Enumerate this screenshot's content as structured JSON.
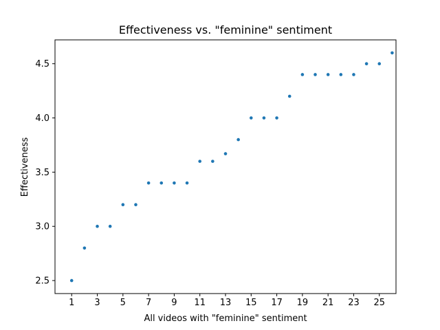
{
  "chart_data": {
    "type": "scatter",
    "title": "Effectiveness vs. \"feminine\" sentiment",
    "xlabel": "All videos with \"feminine\" sentiment",
    "ylabel": "Effectiveness",
    "xlim": [
      -0.3,
      26.3
    ],
    "ylim": [
      2.38,
      4.72
    ],
    "xticks": [
      1,
      3,
      5,
      7,
      9,
      11,
      13,
      15,
      17,
      19,
      21,
      23,
      25
    ],
    "yticks": [
      2.5,
      3.0,
      3.5,
      4.0,
      4.5
    ],
    "ytick_labels": [
      "2.5",
      "3.0",
      "3.5",
      "4.0",
      "4.5"
    ],
    "series": [
      {
        "name": "Effectiveness",
        "color": "#1f77b4",
        "x": [
          1,
          2,
          3,
          4,
          5,
          6,
          7,
          8,
          9,
          10,
          11,
          12,
          13,
          14,
          15,
          16,
          17,
          18,
          19,
          20,
          21,
          22,
          23,
          24,
          25,
          26
        ],
        "y": [
          2.5,
          2.8,
          3.0,
          3.0,
          3.2,
          3.2,
          3.4,
          3.4,
          3.4,
          3.4,
          3.6,
          3.6,
          3.67,
          3.8,
          4.0,
          4.0,
          4.0,
          4.2,
          4.4,
          4.4,
          4.4,
          4.4,
          4.4,
          4.5,
          4.5,
          4.6
        ]
      }
    ]
  }
}
